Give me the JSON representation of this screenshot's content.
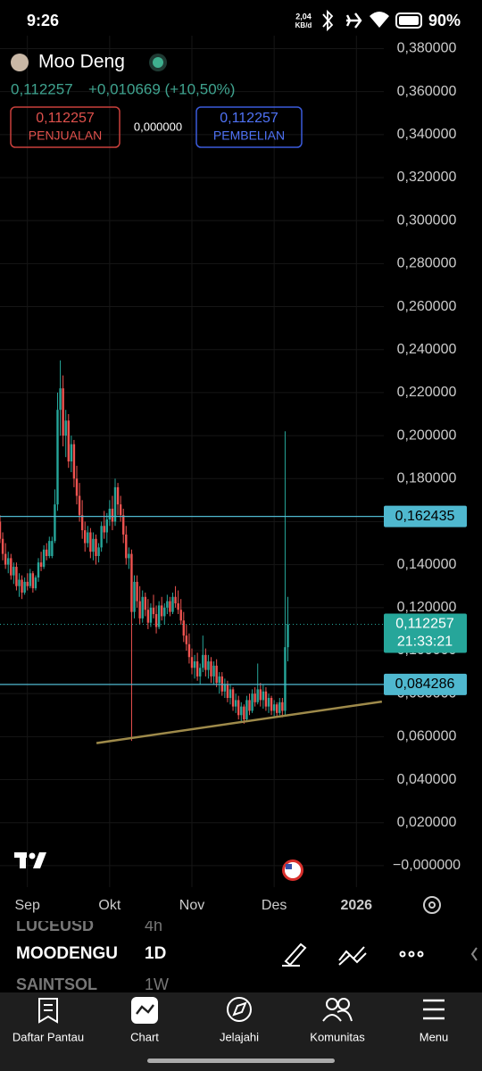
{
  "status_bar": {
    "time": "9:26",
    "speed": "2,04",
    "speed_unit": "KB/d",
    "battery": "90%"
  },
  "header": {
    "symbol": "Moo Deng",
    "price": "0,112257",
    "change": "+0,010669 (+10,50%)",
    "sell": {
      "price": "0,112257",
      "label": "PENJUALAN"
    },
    "spread": "0,000000",
    "buy": {
      "price": "0,112257",
      "label": "PEMBELIAN"
    }
  },
  "chart_data": {
    "type": "candlestick",
    "up_color": "#26a69a",
    "down_color": "#ef5350",
    "grid": true,
    "xlim": [
      0,
      140
    ],
    "ylim": [
      -0.01,
      0.386
    ],
    "xticks": [
      {
        "value": 10,
        "label": "Sep"
      },
      {
        "value": 40,
        "label": "Okt"
      },
      {
        "value": 70,
        "label": "Nov"
      },
      {
        "value": 100,
        "label": "Des"
      },
      {
        "value": 130,
        "label": "2026"
      }
    ],
    "yticks": [
      {
        "value": 0.38,
        "label": "0,380000"
      },
      {
        "value": 0.36,
        "label": "0,360000"
      },
      {
        "value": 0.34,
        "label": "0,340000"
      },
      {
        "value": 0.32,
        "label": "0,320000"
      },
      {
        "value": 0.3,
        "label": "0,300000"
      },
      {
        "value": 0.28,
        "label": "0,280000"
      },
      {
        "value": 0.26,
        "label": "0,260000"
      },
      {
        "value": 0.24,
        "label": "0,240000"
      },
      {
        "value": 0.22,
        "label": "0,220000"
      },
      {
        "value": 0.2,
        "label": "0,200000"
      },
      {
        "value": 0.18,
        "label": "0,180000"
      },
      {
        "value": 0.16,
        "label": "0,160000"
      },
      {
        "value": 0.14,
        "label": "0,140000"
      },
      {
        "value": 0.12,
        "label": "0,120000"
      },
      {
        "value": 0.1,
        "label": "0,100000"
      },
      {
        "value": 0.08,
        "label": "0,080000"
      },
      {
        "value": 0.06,
        "label": "0,060000"
      },
      {
        "value": 0.04,
        "label": "0,040000"
      },
      {
        "value": 0.02,
        "label": "0,020000"
      },
      {
        "value": 0,
        "label": "−0,000000"
      }
    ],
    "levels": [
      {
        "value": 0.162435,
        "label": "0,162435"
      },
      {
        "value": 0.084286,
        "label": "0,084286"
      }
    ],
    "level_color": "#4fb8cf",
    "last_price": {
      "value": 0.112257,
      "label": "0,112257"
    },
    "countdown": "21:33:21",
    "trendline": {
      "x": [
        35.2,
        139.3
      ],
      "y": [
        0.057,
        0.0763
      ],
      "color": "#9e8a4a"
    },
    "candles": [
      [
        0.16,
        0.163,
        0.15,
        0.152
      ],
      [
        0.152,
        0.155,
        0.142,
        0.145
      ],
      [
        0.145,
        0.15,
        0.138,
        0.14
      ],
      [
        0.14,
        0.146,
        0.136,
        0.143
      ],
      [
        0.143,
        0.145,
        0.133,
        0.135
      ],
      [
        0.135,
        0.141,
        0.131,
        0.139
      ],
      [
        0.139,
        0.141,
        0.128,
        0.13
      ],
      [
        0.13,
        0.136,
        0.125,
        0.133
      ],
      [
        0.133,
        0.135,
        0.124,
        0.127
      ],
      [
        0.127,
        0.134,
        0.126,
        0.132
      ],
      [
        0.132,
        0.136,
        0.128,
        0.13
      ],
      [
        0.13,
        0.138,
        0.129,
        0.136
      ],
      [
        0.136,
        0.137,
        0.127,
        0.129
      ],
      [
        0.129,
        0.135,
        0.128,
        0.134
      ],
      [
        0.134,
        0.143,
        0.132,
        0.141
      ],
      [
        0.141,
        0.146,
        0.137,
        0.139
      ],
      [
        0.139,
        0.149,
        0.138,
        0.147
      ],
      [
        0.147,
        0.15,
        0.142,
        0.144
      ],
      [
        0.144,
        0.153,
        0.143,
        0.151
      ],
      [
        0.144,
        0.153,
        0.143,
        0.151
      ],
      [
        0.151,
        0.175,
        0.15,
        0.168
      ],
      [
        0.168,
        0.22,
        0.165,
        0.212
      ],
      [
        0.212,
        0.235,
        0.2,
        0.222
      ],
      [
        0.222,
        0.228,
        0.195,
        0.2
      ],
      [
        0.2,
        0.212,
        0.19,
        0.207
      ],
      [
        0.207,
        0.21,
        0.185,
        0.188
      ],
      [
        0.188,
        0.2,
        0.183,
        0.196
      ],
      [
        0.196,
        0.198,
        0.176,
        0.18
      ],
      [
        0.18,
        0.186,
        0.168,
        0.172
      ],
      [
        0.172,
        0.178,
        0.16,
        0.163
      ],
      [
        0.163,
        0.17,
        0.152,
        0.156
      ],
      [
        0.156,
        0.16,
        0.146,
        0.15
      ],
      [
        0.15,
        0.158,
        0.148,
        0.155
      ],
      [
        0.155,
        0.157,
        0.143,
        0.146
      ],
      [
        0.146,
        0.155,
        0.142,
        0.152
      ],
      [
        0.152,
        0.154,
        0.14,
        0.144
      ],
      [
        0.144,
        0.15,
        0.141,
        0.148
      ],
      [
        0.148,
        0.16,
        0.146,
        0.158
      ],
      [
        0.158,
        0.165,
        0.152,
        0.155
      ],
      [
        0.155,
        0.164,
        0.15,
        0.161
      ],
      [
        0.161,
        0.17,
        0.158,
        0.166
      ],
      [
        0.166,
        0.172,
        0.156,
        0.16
      ],
      [
        0.16,
        0.18,
        0.158,
        0.176
      ],
      [
        0.176,
        0.178,
        0.163,
        0.168
      ],
      [
        0.168,
        0.172,
        0.16,
        0.163
      ],
      [
        0.163,
        0.166,
        0.15,
        0.154
      ],
      [
        0.154,
        0.158,
        0.14,
        0.143
      ],
      [
        0.143,
        0.148,
        0.138,
        0.145
      ],
      [
        0.145,
        0.147,
        0.058,
        0.118
      ],
      [
        0.118,
        0.135,
        0.115,
        0.132
      ],
      [
        0.132,
        0.135,
        0.12,
        0.123
      ],
      [
        0.123,
        0.13,
        0.112,
        0.115
      ],
      [
        0.115,
        0.128,
        0.113,
        0.125
      ],
      [
        0.125,
        0.127,
        0.116,
        0.119
      ],
      [
        0.119,
        0.124,
        0.11,
        0.113
      ],
      [
        0.113,
        0.122,
        0.111,
        0.12
      ],
      [
        0.12,
        0.126,
        0.115,
        0.117
      ],
      [
        0.117,
        0.121,
        0.108,
        0.111
      ],
      [
        0.111,
        0.123,
        0.11,
        0.121
      ],
      [
        0.121,
        0.125,
        0.114,
        0.116
      ],
      [
        0.116,
        0.122,
        0.112,
        0.12
      ],
      [
        0.12,
        0.126,
        0.117,
        0.123
      ],
      [
        0.123,
        0.125,
        0.116,
        0.118
      ],
      [
        0.118,
        0.127,
        0.117,
        0.125
      ],
      [
        0.125,
        0.13,
        0.12,
        0.122
      ],
      [
        0.122,
        0.128,
        0.117,
        0.119
      ],
      [
        0.119,
        0.124,
        0.112,
        0.114
      ],
      [
        0.114,
        0.118,
        0.104,
        0.107
      ],
      [
        0.107,
        0.112,
        0.1,
        0.103
      ],
      [
        0.103,
        0.108,
        0.094,
        0.097
      ],
      [
        0.097,
        0.101,
        0.089,
        0.092
      ],
      [
        0.092,
        0.098,
        0.087,
        0.095
      ],
      [
        0.095,
        0.099,
        0.086,
        0.088
      ],
      [
        0.088,
        0.094,
        0.084,
        0.092
      ],
      [
        0.092,
        0.107,
        0.09,
        0.098
      ],
      [
        0.098,
        0.101,
        0.088,
        0.091
      ],
      [
        0.091,
        0.098,
        0.087,
        0.095
      ],
      [
        0.095,
        0.097,
        0.085,
        0.088
      ],
      [
        0.088,
        0.095,
        0.084,
        0.093
      ],
      [
        0.093,
        0.096,
        0.083,
        0.085
      ],
      [
        0.085,
        0.09,
        0.08,
        0.088
      ],
      [
        0.088,
        0.09,
        0.079,
        0.081
      ],
      [
        0.081,
        0.087,
        0.078,
        0.084
      ],
      [
        0.084,
        0.086,
        0.076,
        0.078
      ],
      [
        0.078,
        0.084,
        0.075,
        0.082
      ],
      [
        0.082,
        0.083,
        0.072,
        0.074
      ],
      [
        0.074,
        0.08,
        0.071,
        0.077
      ],
      [
        0.077,
        0.079,
        0.068,
        0.07
      ],
      [
        0.07,
        0.076,
        0.067,
        0.074
      ],
      [
        0.074,
        0.075,
        0.066,
        0.068
      ],
      [
        0.068,
        0.079,
        0.067,
        0.077
      ],
      [
        0.077,
        0.08,
        0.07,
        0.072
      ],
      [
        0.072,
        0.082,
        0.071,
        0.08
      ],
      [
        0.08,
        0.083,
        0.074,
        0.076
      ],
      [
        0.076,
        0.094,
        0.075,
        0.082
      ],
      [
        0.082,
        0.085,
        0.074,
        0.077
      ],
      [
        0.077,
        0.084,
        0.073,
        0.081
      ],
      [
        0.081,
        0.083,
        0.072,
        0.074
      ],
      [
        0.074,
        0.08,
        0.071,
        0.078
      ],
      [
        0.078,
        0.079,
        0.07,
        0.072
      ],
      [
        0.072,
        0.077,
        0.069,
        0.075
      ],
      [
        0.075,
        0.076,
        0.069,
        0.071
      ],
      [
        0.071,
        0.078,
        0.07,
        0.076
      ],
      [
        0.076,
        0.078,
        0.069,
        0.072
      ],
      [
        0.072,
        0.202,
        0.07,
        0.1016
      ],
      [
        0.1016,
        0.125,
        0.095,
        0.112257
      ]
    ]
  },
  "toolbar": {
    "rows": [
      {
        "symbol": "LUCEUSD",
        "interval": "4h"
      },
      {
        "symbol": "MOODENGU",
        "interval": "1D"
      },
      {
        "symbol": "SAINTSOL",
        "interval": "1W"
      }
    ]
  },
  "nav": [
    "Daftar Pantau",
    "Chart",
    "Jelajahi",
    "Komunitas",
    "Menu"
  ]
}
